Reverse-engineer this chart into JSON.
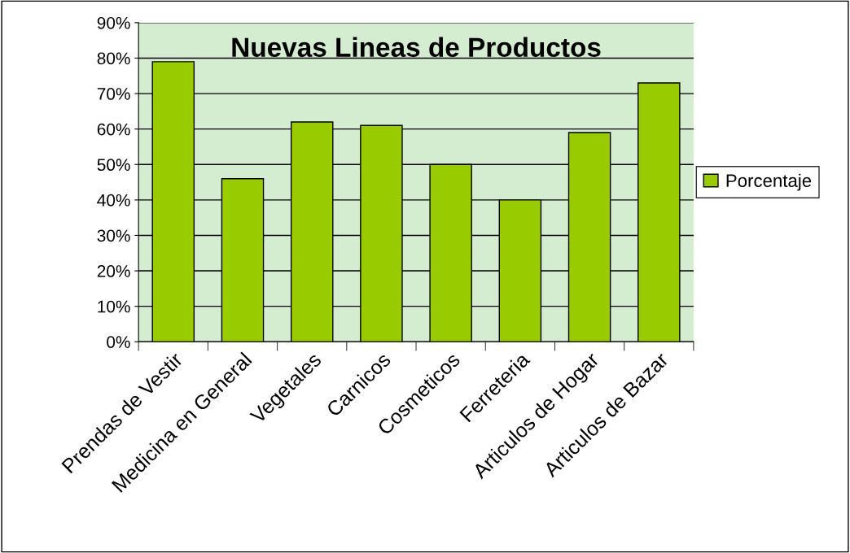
{
  "chart_data": {
    "type": "bar",
    "title": "Nuevas Lineas de Productos",
    "categories": [
      "Prendas de Vestir",
      "Medicina en General",
      "Vegetales",
      "Carnicos",
      "Cosmeticos",
      "Ferreteria",
      "Articulos de Hogar",
      "Articulos de Bazar"
    ],
    "series": [
      {
        "name": "Porcentaje",
        "color": "#99cc00",
        "values": [
          79,
          46,
          62,
          61,
          50,
          40,
          59,
          73
        ]
      }
    ],
    "ylim": [
      0,
      90
    ],
    "yticks": [
      {
        "value": 0,
        "label": "0%"
      },
      {
        "value": 10,
        "label": "10%"
      },
      {
        "value": 20,
        "label": "20%"
      },
      {
        "value": 30,
        "label": "30%"
      },
      {
        "value": 40,
        "label": "40%"
      },
      {
        "value": 50,
        "label": "50%"
      },
      {
        "value": 60,
        "label": "60%"
      },
      {
        "value": 70,
        "label": "70%"
      },
      {
        "value": 80,
        "label": "80%"
      },
      {
        "value": 90,
        "label": "90%"
      }
    ],
    "grid": "y",
    "legend": "right"
  }
}
